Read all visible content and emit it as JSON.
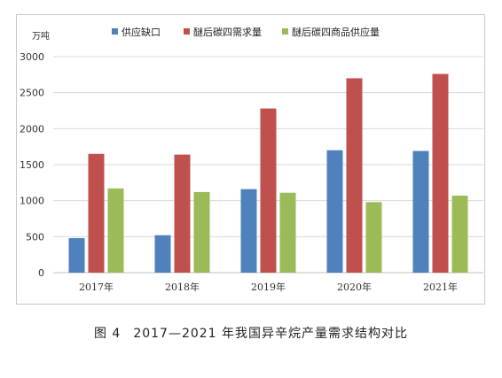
{
  "chart_data": {
    "type": "bar",
    "unit_label": "万吨",
    "categories": [
      "2017年",
      "2018年",
      "2019年",
      "2020年",
      "2021年"
    ],
    "series": [
      {
        "name": "供应缺口",
        "color": "#4f81bd",
        "values": [
          480,
          520,
          1160,
          1700,
          1690
        ]
      },
      {
        "name": "醚后碳四需求量",
        "color": "#c0504d",
        "values": [
          1650,
          1640,
          2280,
          2700,
          2760
        ]
      },
      {
        "name": "醚后碳四商品供应量",
        "color": "#9bbb59",
        "values": [
          1170,
          1120,
          1110,
          980,
          1070
        ]
      }
    ],
    "ylim": [
      0,
      3000
    ],
    "yticks": [
      0,
      500,
      1000,
      1500,
      2000,
      2500,
      3000
    ],
    "grid": true,
    "legend": "top"
  },
  "caption": {
    "figure_label": "图 4",
    "text": "2017—2021 年我国异辛烷产量需求结构对比"
  }
}
